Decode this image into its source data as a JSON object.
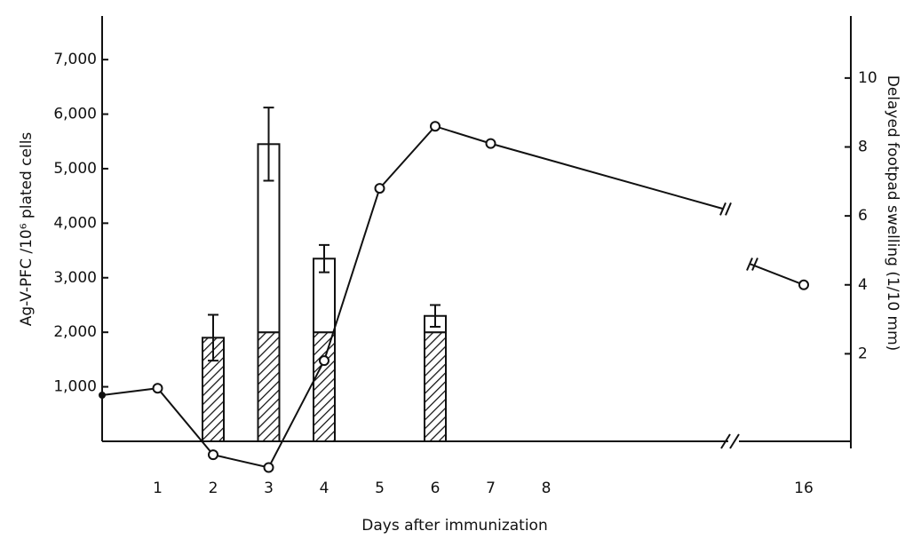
{
  "chart_data": {
    "type": "bar-line",
    "y_label": "Ag-V-PFC /10⁶ plated cells",
    "y2_label": "Delayed footpad swelling (1/10 mm)",
    "x_label": "Days after immunization",
    "xticks": [
      1,
      2,
      3,
      4,
      5,
      6,
      7,
      8,
      16
    ],
    "ylim": [
      0,
      7800
    ],
    "yticks": [
      {
        "value": 1000,
        "label": "1,000"
      },
      {
        "value": 2000,
        "label": "2,000"
      },
      {
        "value": 3000,
        "label": "3,000"
      },
      {
        "value": 4000,
        "label": "4,000"
      },
      {
        "value": 5000,
        "label": "5,000"
      },
      {
        "value": 6000,
        "label": "6,000"
      },
      {
        "value": 7000,
        "label": "7,000"
      }
    ],
    "y2lim": [
      -0.54,
      11.8
    ],
    "y2ticks": [
      2,
      4,
      6,
      8,
      10
    ],
    "bars": {
      "x": [
        2,
        3,
        4,
        6
      ],
      "series": [
        {
          "color": "#111111",
          "pattern": "hatch",
          "values": [
            1900,
            2000,
            2000,
            2000
          ]
        },
        {
          "color": "#ffffff",
          "values": [
            0,
            3450,
            1350,
            300
          ],
          "errors": [
            420,
            670,
            250,
            200
          ]
        }
      ]
    },
    "series": [
      {
        "axis": "y2",
        "color": "#111111",
        "x": [
          0,
          1,
          2,
          3,
          4,
          5,
          6,
          7,
          11.2,
          null,
          14,
          16
        ],
        "values": [
          0.8,
          1.0,
          -0.93,
          -1.3,
          1.8,
          6.8,
          8.6,
          8.1,
          6.2,
          null,
          4.6,
          4.0
        ]
      }
    ]
  }
}
